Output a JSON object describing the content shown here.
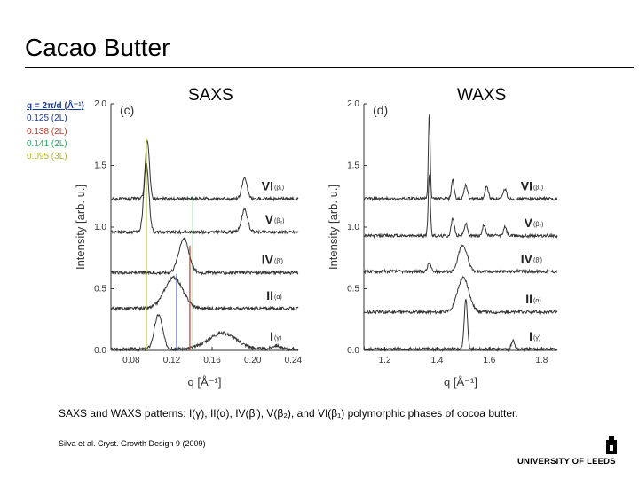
{
  "slide": {
    "title": "Cacao Butter",
    "saxs_label": "SAXS",
    "waxs_label": "WAXS",
    "caption": "SAXS and WAXS patterns: I(γ), II(α), IV(β′), V(β₂), and VI(β₁) polymorphic phases of cocoa butter.",
    "citation": "Silva et al. Cryst. Growth Design 9 (2009)",
    "logo_text": "UNIVERSITY OF LEEDS"
  },
  "legend": {
    "header": "q = 2π/d (Å⁻¹)",
    "items": [
      {
        "text": "0.125 (2L)",
        "color": "#1f3a93"
      },
      {
        "text": "0.138 (2L)",
        "color": "#c0392b"
      },
      {
        "text": "0.141 (2L)",
        "color": "#27ae60"
      },
      {
        "text": "0.095 (3L)",
        "color": "#b5b533"
      }
    ]
  },
  "chart_data": [
    {
      "type": "line",
      "panel_label": "(c)",
      "xlabel": "q [Å⁻¹]",
      "ylabel": "Intensity [arb. u.]",
      "xlim": [
        0.06,
        0.245
      ],
      "ylim": [
        0.0,
        2.0
      ],
      "xticks": [
        "0.08",
        "0.12",
        "0.16",
        "0.20",
        "0.24"
      ],
      "yticks": [
        "0.0",
        "0.5",
        "1.0",
        "1.5",
        "2.0"
      ],
      "series": [
        {
          "name": "I",
          "subscript": "(γ)",
          "offset": 0.0,
          "peaks": [
            [
              0.107,
              0.28,
              0.004
            ],
            [
              0.17,
              0.13,
              0.014
            ],
            [
              0.223,
              0.03,
              0.004
            ]
          ]
        },
        {
          "name": "II",
          "subscript": "(α)",
          "offset": 0.33,
          "peaks": [
            [
              0.122,
              0.25,
              0.009
            ]
          ]
        },
        {
          "name": "IV",
          "subscript": "(β′)",
          "offset": 0.62,
          "peaks": [
            [
              0.132,
              0.28,
              0.005
            ]
          ]
        },
        {
          "name": "V",
          "subscript": "(β₂)",
          "offset": 0.95,
          "peaks": [
            [
              0.095,
              0.55,
              0.0025
            ],
            [
              0.192,
              0.18,
              0.003
            ]
          ]
        },
        {
          "name": "VI",
          "subscript": "(β₁)",
          "offset": 1.22,
          "peaks": [
            [
              0.096,
              0.48,
              0.002
            ],
            [
              0.192,
              0.17,
              0.0025
            ]
          ]
        }
      ],
      "reference_lines": [
        {
          "q": 0.095,
          "color": "#b5b533"
        },
        {
          "q": 0.125,
          "color": "#1f3a93"
        },
        {
          "q": 0.138,
          "color": "#c0392b"
        },
        {
          "q": 0.141,
          "color": "#27ae60"
        }
      ]
    },
    {
      "type": "line",
      "panel_label": "(d)",
      "xlabel": "q [Å⁻¹]",
      "ylabel": "Intensity [arb. u.]",
      "xlim": [
        1.12,
        1.86
      ],
      "ylim": [
        0.0,
        2.0
      ],
      "xticks": [
        "1.2",
        "1.4",
        "1.6",
        "1.8"
      ],
      "yticks": [
        "0.0",
        "0.5",
        "1.0",
        "1.5",
        "2.0"
      ],
      "series": [
        {
          "name": "I",
          "subscript": "(γ)",
          "offset": 0.0,
          "peaks": [
            [
              1.51,
              0.4,
              0.006
            ],
            [
              1.69,
              0.07,
              0.006
            ]
          ]
        },
        {
          "name": "II",
          "subscript": "(α)",
          "offset": 0.3,
          "peaks": [
            [
              1.5,
              0.28,
              0.022
            ]
          ]
        },
        {
          "name": "IV",
          "subscript": "(β′)",
          "offset": 0.63,
          "peaks": [
            [
              1.37,
              0.07,
              0.006
            ],
            [
              1.49,
              0.16,
              0.012
            ],
            [
              1.51,
              0.13,
              0.012
            ]
          ]
        },
        {
          "name": "V",
          "subscript": "(β₂)",
          "offset": 0.92,
          "peaks": [
            [
              1.37,
              0.5,
              0.004
            ],
            [
              1.46,
              0.14,
              0.006
            ],
            [
              1.51,
              0.1,
              0.006
            ],
            [
              1.58,
              0.09,
              0.006
            ],
            [
              1.66,
              0.07,
              0.006
            ]
          ]
        },
        {
          "name": "VI",
          "subscript": "(β₁)",
          "offset": 1.22,
          "peaks": [
            [
              1.37,
              0.7,
              0.0035
            ],
            [
              1.46,
              0.16,
              0.005
            ],
            [
              1.51,
              0.11,
              0.006
            ],
            [
              1.59,
              0.1,
              0.006
            ],
            [
              1.66,
              0.08,
              0.006
            ]
          ]
        }
      ]
    }
  ]
}
